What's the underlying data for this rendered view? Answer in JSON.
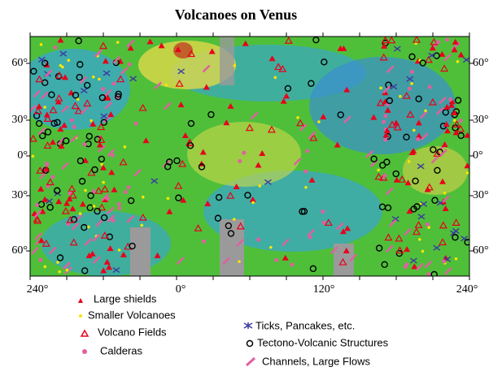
{
  "title": "Volcanoes on Venus",
  "lat_labels": [
    "60°",
    "30°",
    "0°",
    "30°",
    "60°"
  ],
  "lon_labels": [
    "240°",
    "0°",
    "120°",
    "240°"
  ],
  "legend": [
    {
      "label": "Large shields"
    },
    {
      "label": "Smaller Volcanoes"
    },
    {
      "label": "Volcano Fields"
    },
    {
      "label": "Calderas"
    },
    {
      "label": "Ticks, Pancakes, etc."
    },
    {
      "label": "Tectono-Volcanic Structures"
    },
    {
      "label": "Channels, Large Flows"
    }
  ]
}
